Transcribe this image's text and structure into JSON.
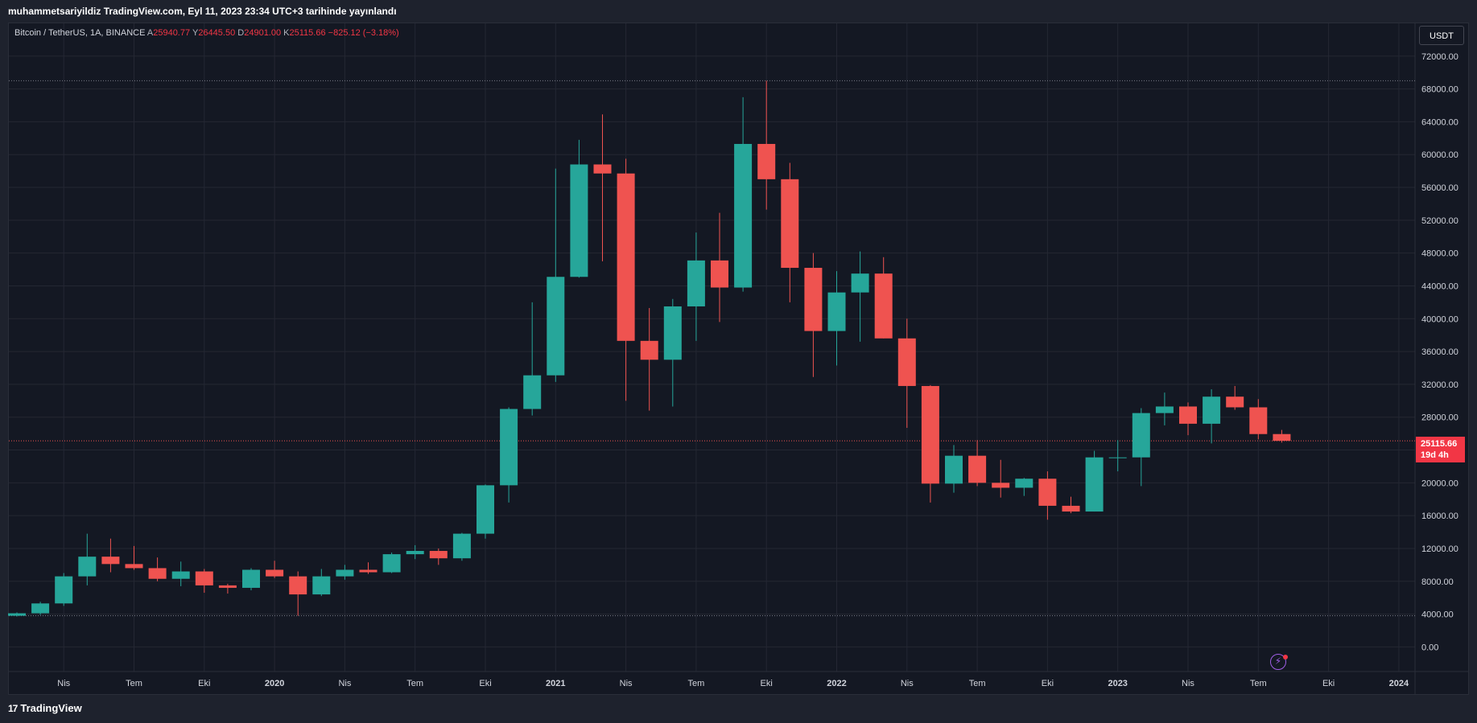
{
  "header": {
    "published": "muhammetsariyildiz TradingView.com, Eyl 11, 2023 23:34 UTC+3 tarihinde yayınlandı"
  },
  "legend": {
    "symbol": "Bitcoin / TetherUS, 1A, BINANCE",
    "open_label": "A",
    "open_value": "25940.77",
    "high_label": "Y",
    "high_value": "26445.50",
    "low_label": "D",
    "low_value": "24901.00",
    "close_label": "K",
    "close_value": "25115.66",
    "change": "−825.12 (−3.18%)"
  },
  "currency_button": "USDT",
  "last_price": {
    "value": "25115.66",
    "countdown": "19d 4h"
  },
  "footer": {
    "logo_glyph": "17",
    "brand": "TradingView"
  },
  "colors": {
    "up": "#26a69a",
    "down": "#ef5350",
    "background": "#141823",
    "grid": "#242733"
  },
  "chart_data": {
    "type": "candlestick",
    "title": "",
    "yaxis_ticks": [
      0,
      4000,
      8000,
      12000,
      16000,
      20000,
      24000,
      28000,
      32000,
      36000,
      40000,
      44000,
      48000,
      52000,
      56000,
      60000,
      64000,
      68000,
      72000
    ],
    "y_tick_labels": [
      "0.00",
      "4000.00",
      "8000.00",
      "12000.00",
      "16000.00",
      "20000.00",
      "24000.00",
      "28000.00",
      "32000.00",
      "36000.00",
      "40000.00",
      "44000.00",
      "48000.00",
      "52000.00",
      "56000.00",
      "60000.00",
      "64000.00",
      "68000.00",
      "72000.00"
    ],
    "ylim": [
      -3000,
      76000
    ],
    "x_ticks": [
      {
        "label": "Nis",
        "date": "2019-04",
        "year": false
      },
      {
        "label": "Tem",
        "date": "2019-07",
        "year": false
      },
      {
        "label": "Eki",
        "date": "2019-10",
        "year": false
      },
      {
        "label": "2020",
        "date": "2020-01",
        "year": true
      },
      {
        "label": "Nis",
        "date": "2020-04",
        "year": false
      },
      {
        "label": "Tem",
        "date": "2020-07",
        "year": false
      },
      {
        "label": "Eki",
        "date": "2020-10",
        "year": false
      },
      {
        "label": "2021",
        "date": "2021-01",
        "year": true
      },
      {
        "label": "Nis",
        "date": "2021-04",
        "year": false
      },
      {
        "label": "Tem",
        "date": "2021-07",
        "year": false
      },
      {
        "label": "Eki",
        "date": "2021-10",
        "year": false
      },
      {
        "label": "2022",
        "date": "2022-01",
        "year": true
      },
      {
        "label": "Nis",
        "date": "2022-04",
        "year": false
      },
      {
        "label": "Tem",
        "date": "2022-07",
        "year": false
      },
      {
        "label": "Eki",
        "date": "2022-10",
        "year": false
      },
      {
        "label": "2023",
        "date": "2023-01",
        "year": true
      },
      {
        "label": "Nis",
        "date": "2023-04",
        "year": false
      },
      {
        "label": "Tem",
        "date": "2023-07",
        "year": false
      },
      {
        "label": "Eki",
        "date": "2023-10",
        "year": false
      },
      {
        "label": "2024",
        "date": "2024-01",
        "year": true
      }
    ],
    "reference_lines": [
      69000,
      3800
    ],
    "last_price_line": 25115.66,
    "candles": [
      {
        "date": "2019-02",
        "open": 3800,
        "high": 4200,
        "low": 3700,
        "close": 4100
      },
      {
        "date": "2019-03",
        "open": 4100,
        "high": 5500,
        "low": 3900,
        "close": 5300
      },
      {
        "date": "2019-04",
        "open": 5300,
        "high": 9000,
        "low": 5000,
        "close": 8600
      },
      {
        "date": "2019-05",
        "open": 8600,
        "high": 13800,
        "low": 7500,
        "close": 11000
      },
      {
        "date": "2019-06",
        "open": 11000,
        "high": 13200,
        "low": 9100,
        "close": 10100
      },
      {
        "date": "2019-07",
        "open": 10100,
        "high": 12300,
        "low": 9400,
        "close": 9600
      },
      {
        "date": "2019-08",
        "open": 9600,
        "high": 10900,
        "low": 8000,
        "close": 8300
      },
      {
        "date": "2019-09",
        "open": 8300,
        "high": 10400,
        "low": 7400,
        "close": 9200
      },
      {
        "date": "2019-10",
        "open": 9200,
        "high": 9500,
        "low": 6600,
        "close": 7500
      },
      {
        "date": "2019-11",
        "open": 7500,
        "high": 7700,
        "low": 6500,
        "close": 7200
      },
      {
        "date": "2019-12",
        "open": 7200,
        "high": 9600,
        "low": 6900,
        "close": 9400
      },
      {
        "date": "2020-01",
        "open": 9400,
        "high": 10500,
        "low": 8400,
        "close": 8600
      },
      {
        "date": "2020-02",
        "open": 8600,
        "high": 9200,
        "low": 3800,
        "close": 6400
      },
      {
        "date": "2020-03",
        "open": 6400,
        "high": 9500,
        "low": 6200,
        "close": 8600
      },
      {
        "date": "2020-04",
        "open": 8600,
        "high": 10000,
        "low": 8200,
        "close": 9400
      },
      {
        "date": "2020-05",
        "open": 9400,
        "high": 10300,
        "low": 8900,
        "close": 9100
      },
      {
        "date": "2020-06",
        "open": 9100,
        "high": 11500,
        "low": 9000,
        "close": 11300
      },
      {
        "date": "2020-07",
        "open": 11300,
        "high": 12400,
        "low": 10700,
        "close": 11700
      },
      {
        "date": "2020-08",
        "open": 11700,
        "high": 12000,
        "low": 10000,
        "close": 10800
      },
      {
        "date": "2020-09",
        "open": 10800,
        "high": 13900,
        "low": 10500,
        "close": 13800
      },
      {
        "date": "2020-10",
        "open": 13800,
        "high": 19800,
        "low": 13200,
        "close": 19700
      },
      {
        "date": "2020-11",
        "open": 19700,
        "high": 29200,
        "low": 17600,
        "close": 29000
      },
      {
        "date": "2020-12",
        "open": 29000,
        "high": 42000,
        "low": 28200,
        "close": 33100
      },
      {
        "date": "2021-01",
        "open": 33100,
        "high": 58300,
        "low": 32300,
        "close": 45100
      },
      {
        "date": "2021-02",
        "open": 45100,
        "high": 61800,
        "low": 45000,
        "close": 58800
      },
      {
        "date": "2021-03",
        "open": 58800,
        "high": 64900,
        "low": 47000,
        "close": 57700
      },
      {
        "date": "2021-04",
        "open": 57700,
        "high": 59500,
        "low": 30000,
        "close": 37300
      },
      {
        "date": "2021-05",
        "open": 37300,
        "high": 41300,
        "low": 28800,
        "close": 35000
      },
      {
        "date": "2021-06",
        "open": 35000,
        "high": 42400,
        "low": 29300,
        "close": 41500
      },
      {
        "date": "2021-07",
        "open": 41500,
        "high": 50500,
        "low": 37300,
        "close": 47100
      },
      {
        "date": "2021-08",
        "open": 47100,
        "high": 52900,
        "low": 39600,
        "close": 43800
      },
      {
        "date": "2021-09",
        "open": 43800,
        "high": 67000,
        "low": 43300,
        "close": 61300
      },
      {
        "date": "2021-10",
        "open": 61300,
        "high": 69000,
        "low": 53300,
        "close": 57000
      },
      {
        "date": "2021-11",
        "open": 57000,
        "high": 59000,
        "low": 42000,
        "close": 46200
      },
      {
        "date": "2021-12",
        "open": 46200,
        "high": 48000,
        "low": 32900,
        "close": 38500
      },
      {
        "date": "2022-01",
        "open": 38500,
        "high": 45800,
        "low": 34300,
        "close": 43200
      },
      {
        "date": "2022-02",
        "open": 43200,
        "high": 48200,
        "low": 37200,
        "close": 45500
      },
      {
        "date": "2022-03",
        "open": 45500,
        "high": 47500,
        "low": 37600,
        "close": 37600
      },
      {
        "date": "2022-04",
        "open": 37600,
        "high": 40000,
        "low": 26700,
        "close": 31800
      },
      {
        "date": "2022-05",
        "open": 31800,
        "high": 31900,
        "low": 17600,
        "close": 19900
      },
      {
        "date": "2022-06",
        "open": 19900,
        "high": 24600,
        "low": 18800,
        "close": 23300
      },
      {
        "date": "2022-07",
        "open": 23300,
        "high": 25200,
        "low": 19600,
        "close": 20000
      },
      {
        "date": "2022-08",
        "open": 20000,
        "high": 22800,
        "low": 18200,
        "close": 19400
      },
      {
        "date": "2022-09",
        "open": 19400,
        "high": 20600,
        "low": 18400,
        "close": 20500
      },
      {
        "date": "2022-10",
        "open": 20500,
        "high": 21400,
        "low": 15500,
        "close": 17200
      },
      {
        "date": "2022-11",
        "open": 17200,
        "high": 18300,
        "low": 16300,
        "close": 16500
      },
      {
        "date": "2022-12",
        "open": 16500,
        "high": 23900,
        "low": 16500,
        "close": 23100
      },
      {
        "date": "2023-01",
        "open": 23100,
        "high": 25200,
        "low": 21400,
        "close": 23100
      },
      {
        "date": "2023-02",
        "open": 23100,
        "high": 29100,
        "low": 19600,
        "close": 28500
      },
      {
        "date": "2023-03",
        "open": 28500,
        "high": 31000,
        "low": 27000,
        "close": 29300
      },
      {
        "date": "2023-04",
        "open": 29300,
        "high": 29800,
        "low": 25800,
        "close": 27200
      },
      {
        "date": "2023-05",
        "open": 27200,
        "high": 31400,
        "low": 24800,
        "close": 30500
      },
      {
        "date": "2023-06",
        "open": 30500,
        "high": 31800,
        "low": 28900,
        "close": 29200
      },
      {
        "date": "2023-07",
        "open": 29200,
        "high": 30200,
        "low": 25300,
        "close": 25940.77
      },
      {
        "date": "2023-08",
        "open": 25940.77,
        "high": 26445.5,
        "low": 24901.0,
        "close": 25115.66
      }
    ]
  }
}
